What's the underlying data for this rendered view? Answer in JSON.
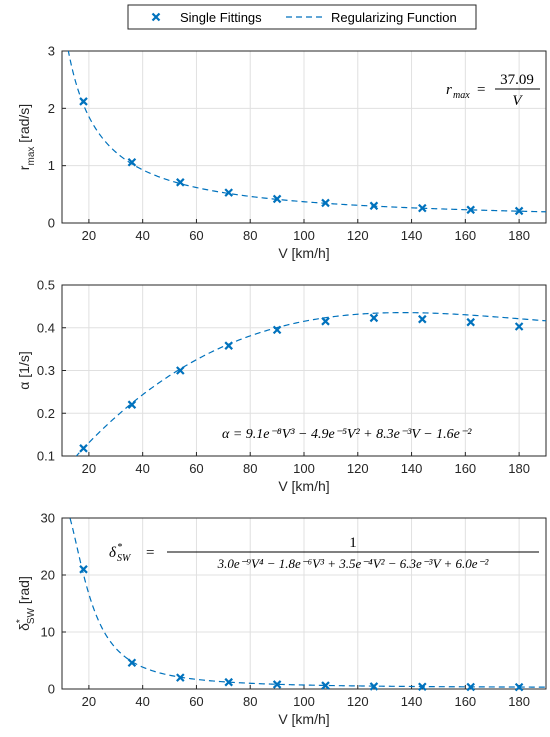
{
  "legend": {
    "marker_label": "Single Fittings",
    "line_label": "Regularizing Function"
  },
  "colors": {
    "series": "#0072BD"
  },
  "chart_data": [
    {
      "type": "scatter",
      "xlabel": "V [km/h]",
      "ylabel_main": "r",
      "ylabel_sub": "max",
      "ylabel_unit": "[rad/s]",
      "xlim": [
        10,
        190
      ],
      "ylim": [
        0,
        3
      ],
      "xticks": [
        20,
        40,
        60,
        80,
        100,
        120,
        140,
        160,
        180
      ],
      "yticks": [
        0,
        1,
        2,
        3
      ],
      "grid": true,
      "equation": {
        "lhs": "r",
        "lhs_sub": "max",
        "eq": "=",
        "numerator": "37.09",
        "denominator": "V"
      },
      "series": [
        {
          "name": "Single Fittings",
          "x": [
            18,
            36,
            54,
            72,
            90,
            108,
            126,
            144,
            162,
            180
          ],
          "y": [
            2.12,
            1.06,
            0.71,
            0.53,
            0.42,
            0.35,
            0.3,
            0.26,
            0.23,
            0.21
          ]
        }
      ]
    },
    {
      "type": "scatter",
      "xlabel": "V [km/h]",
      "ylabel_main": "α",
      "ylabel_sub": "",
      "ylabel_unit": "[1/s]",
      "xlim": [
        10,
        190
      ],
      "ylim": [
        0.1,
        0.5
      ],
      "xticks": [
        20,
        40,
        60,
        80,
        100,
        120,
        140,
        160,
        180
      ],
      "yticks": [
        0.1,
        0.2,
        0.3,
        0.4,
        0.5
      ],
      "grid": true,
      "equation_text": "α = 9.1e⁻⁸V³ − 4.9e⁻⁵V² + 8.3e⁻³V − 1.6e⁻²",
      "series": [
        {
          "name": "Single Fittings",
          "x": [
            18,
            36,
            54,
            72,
            90,
            108,
            126,
            144,
            162,
            180
          ],
          "y": [
            0.118,
            0.22,
            0.3,
            0.358,
            0.395,
            0.415,
            0.423,
            0.42,
            0.413,
            0.403
          ]
        }
      ]
    },
    {
      "type": "scatter",
      "xlabel": "V [km/h]",
      "ylabel_main": "δ",
      "ylabel_sub": "SW",
      "ylabel_sup": "*",
      "ylabel_unit": "[rad]",
      "xlim": [
        10,
        190
      ],
      "ylim": [
        0,
        30
      ],
      "xticks": [
        20,
        40,
        60,
        80,
        100,
        120,
        140,
        160,
        180
      ],
      "yticks": [
        0,
        10,
        20,
        30
      ],
      "grid": true,
      "equation": {
        "lhs": "δ",
        "lhs_sup": "*",
        "lhs_sub": "SW",
        "eq": "=",
        "numerator": "1",
        "denominator": "3.0e⁻⁹V⁴ − 1.8e⁻⁶V³ + 3.5e⁻⁴V² − 6.3e⁻³V + 6.0e⁻²"
      },
      "series": [
        {
          "name": "Single Fittings",
          "x": [
            18,
            36,
            54,
            72,
            90,
            108,
            126,
            144,
            162,
            180
          ],
          "y": [
            21.0,
            4.6,
            2.0,
            1.2,
            0.8,
            0.6,
            0.45,
            0.4,
            0.35,
            0.33
          ]
        }
      ]
    }
  ]
}
